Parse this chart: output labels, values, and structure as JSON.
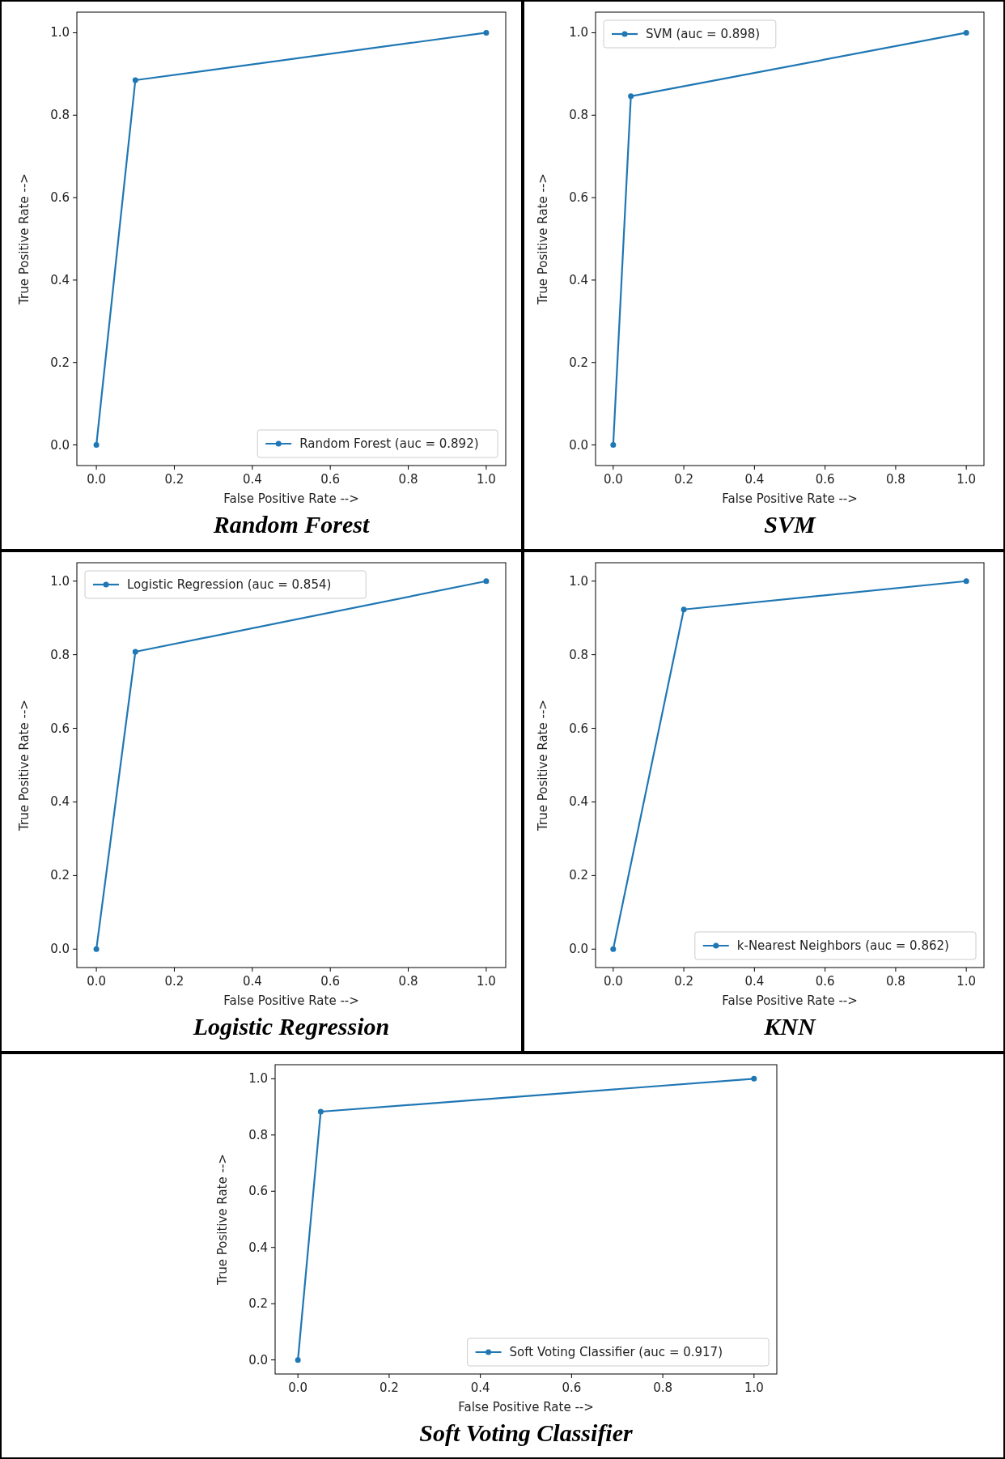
{
  "chart_data": [
    {
      "type": "line",
      "title": "Random Forest",
      "xlabel": "False Positive Rate -->",
      "ylabel": "True Positive Rate -->",
      "x": [
        0,
        0.1,
        1
      ],
      "marker": "circle",
      "legend": "bottom right",
      "xlim": [
        -0.05,
        1.05
      ],
      "ylim": [
        -0.05,
        1.05
      ],
      "xticks": [
        {
          "value": 0,
          "label": "0.0"
        },
        {
          "value": 0.2,
          "label": "0.2"
        },
        {
          "value": 0.4,
          "label": "0.4"
        },
        {
          "value": 0.6,
          "label": "0.6"
        },
        {
          "value": 0.8,
          "label": "0.8"
        },
        {
          "value": 1,
          "label": "1.0"
        }
      ],
      "yticks": [
        {
          "value": 0,
          "label": "0.0"
        },
        {
          "value": 0.2,
          "label": "0.2"
        },
        {
          "value": 0.4,
          "label": "0.4"
        },
        {
          "value": 0.6,
          "label": "0.6"
        },
        {
          "value": 0.8,
          "label": "0.8"
        },
        {
          "value": 1,
          "label": "1.0"
        }
      ],
      "series": [
        {
          "name": "Random Forest (auc = 0.892)",
          "color": "#1f77b4",
          "values": [
            0,
            0.885,
            1
          ]
        }
      ]
    },
    {
      "type": "line",
      "title": "SVM",
      "xlabel": "False Positive Rate -->",
      "ylabel": "True Positive Rate -->",
      "x": [
        0,
        0.05,
        1
      ],
      "marker": "circle",
      "legend": "top left",
      "xlim": [
        -0.05,
        1.05
      ],
      "ylim": [
        -0.05,
        1.05
      ],
      "xticks": [
        {
          "value": 0,
          "label": "0.0"
        },
        {
          "value": 0.2,
          "label": "0.2"
        },
        {
          "value": 0.4,
          "label": "0.4"
        },
        {
          "value": 0.6,
          "label": "0.6"
        },
        {
          "value": 0.8,
          "label": "0.8"
        },
        {
          "value": 1,
          "label": "1.0"
        }
      ],
      "yticks": [
        {
          "value": 0,
          "label": "0.0"
        },
        {
          "value": 0.2,
          "label": "0.2"
        },
        {
          "value": 0.4,
          "label": "0.4"
        },
        {
          "value": 0.6,
          "label": "0.6"
        },
        {
          "value": 0.8,
          "label": "0.8"
        },
        {
          "value": 1,
          "label": "1.0"
        }
      ],
      "series": [
        {
          "name": "SVM (auc = 0.898)",
          "color": "#1f77b4",
          "values": [
            0,
            0.846,
            1
          ]
        }
      ]
    },
    {
      "type": "line",
      "title": "Logistic Regression",
      "xlabel": "False Positive Rate -->",
      "ylabel": "True Positive Rate -->",
      "x": [
        0,
        0.1,
        1
      ],
      "marker": "circle",
      "legend": "top left",
      "xlim": [
        -0.05,
        1.05
      ],
      "ylim": [
        -0.05,
        1.05
      ],
      "xticks": [
        {
          "value": 0,
          "label": "0.0"
        },
        {
          "value": 0.2,
          "label": "0.2"
        },
        {
          "value": 0.4,
          "label": "0.4"
        },
        {
          "value": 0.6,
          "label": "0.6"
        },
        {
          "value": 0.8,
          "label": "0.8"
        },
        {
          "value": 1,
          "label": "1.0"
        }
      ],
      "yticks": [
        {
          "value": 0,
          "label": "0.0"
        },
        {
          "value": 0.2,
          "label": "0.2"
        },
        {
          "value": 0.4,
          "label": "0.4"
        },
        {
          "value": 0.6,
          "label": "0.6"
        },
        {
          "value": 0.8,
          "label": "0.8"
        },
        {
          "value": 1,
          "label": "1.0"
        }
      ],
      "series": [
        {
          "name": "Logistic Regression (auc = 0.854)",
          "color": "#1f77b4",
          "values": [
            0,
            0.808,
            1
          ]
        }
      ]
    },
    {
      "type": "line",
      "title": "KNN",
      "xlabel": "False Positive Rate -->",
      "ylabel": "True Positive Rate -->",
      "x": [
        0,
        0.2,
        1
      ],
      "marker": "circle",
      "legend": "bottom right",
      "xlim": [
        -0.05,
        1.05
      ],
      "ylim": [
        -0.05,
        1.05
      ],
      "xticks": [
        {
          "value": 0,
          "label": "0.0"
        },
        {
          "value": 0.2,
          "label": "0.2"
        },
        {
          "value": 0.4,
          "label": "0.4"
        },
        {
          "value": 0.6,
          "label": "0.6"
        },
        {
          "value": 0.8,
          "label": "0.8"
        },
        {
          "value": 1,
          "label": "1.0"
        }
      ],
      "yticks": [
        {
          "value": 0,
          "label": "0.0"
        },
        {
          "value": 0.2,
          "label": "0.2"
        },
        {
          "value": 0.4,
          "label": "0.4"
        },
        {
          "value": 0.6,
          "label": "0.6"
        },
        {
          "value": 0.8,
          "label": "0.8"
        },
        {
          "value": 1,
          "label": "1.0"
        }
      ],
      "series": [
        {
          "name": "k-Nearest Neighbors (auc = 0.862)",
          "color": "#1f77b4",
          "values": [
            0,
            0.923,
            1
          ]
        }
      ]
    },
    {
      "type": "line",
      "title": "Soft Voting Classifier",
      "xlabel": "False Positive Rate -->",
      "ylabel": "True Positive Rate -->",
      "x": [
        0,
        0.05,
        1
      ],
      "marker": "circle",
      "legend": "bottom right",
      "xlim": [
        -0.05,
        1.05
      ],
      "ylim": [
        -0.05,
        1.05
      ],
      "xticks": [
        {
          "value": 0,
          "label": "0.0"
        },
        {
          "value": 0.2,
          "label": "0.2"
        },
        {
          "value": 0.4,
          "label": "0.4"
        },
        {
          "value": 0.6,
          "label": "0.6"
        },
        {
          "value": 0.8,
          "label": "0.8"
        },
        {
          "value": 1,
          "label": "1.0"
        }
      ],
      "yticks": [
        {
          "value": 0,
          "label": "0.0"
        },
        {
          "value": 0.2,
          "label": "0.2"
        },
        {
          "value": 0.4,
          "label": "0.4"
        },
        {
          "value": 0.6,
          "label": "0.6"
        },
        {
          "value": 0.8,
          "label": "0.8"
        },
        {
          "value": 1,
          "label": "1.0"
        }
      ],
      "series": [
        {
          "name": "Soft Voting Classifier (auc = 0.917)",
          "color": "#1f77b4",
          "values": [
            0,
            0.883,
            1
          ]
        }
      ]
    }
  ]
}
